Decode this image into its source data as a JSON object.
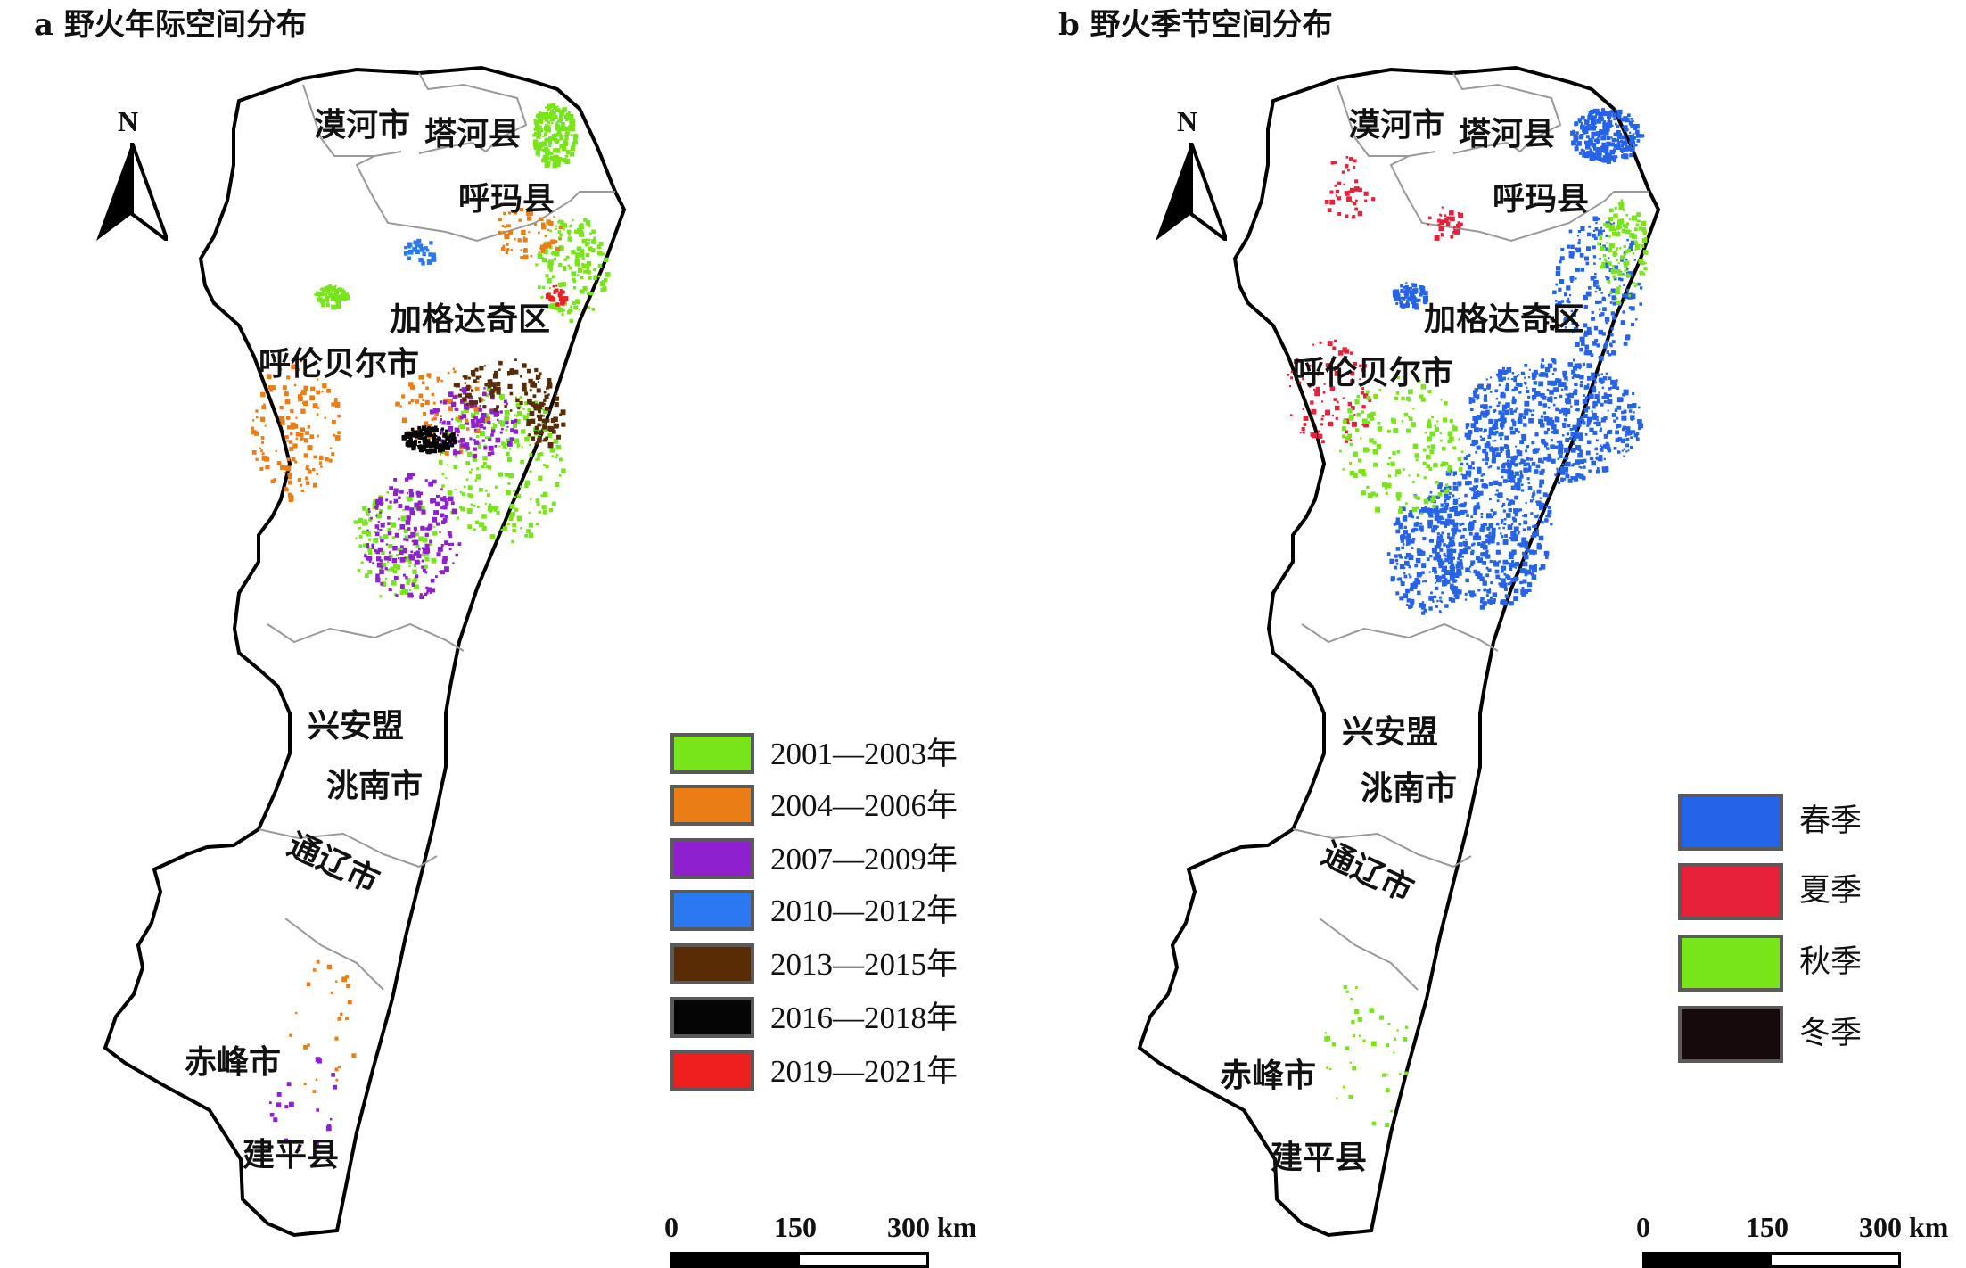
{
  "panels": [
    {
      "title": "a 野火年际空间分布",
      "places": {
        "mohe": "漠河市",
        "tahe": "塔河县",
        "huma": "呼玛县",
        "jiagedaqi": "加格达奇区",
        "hulunbuir": "呼伦贝尔市",
        "xinganmeng": "兴安盟",
        "taonan": "洮南市",
        "tongliao": "通辽市",
        "chifeng": "赤峰市",
        "jianping": "建平县"
      },
      "north": "N",
      "legend": [
        {
          "label": "2001—2003年",
          "color": "#77e51a"
        },
        {
          "label": "2004—2006年",
          "color": "#ea7d16"
        },
        {
          "label": "2007—2009年",
          "color": "#8e20d0"
        },
        {
          "label": "2010—2012年",
          "color": "#2c78f2"
        },
        {
          "label": "2013—2015年",
          "color": "#5a2c06"
        },
        {
          "label": "2016—2018年",
          "color": "#050505"
        },
        {
          "label": "2019—2021年",
          "color": "#f01f1f"
        }
      ],
      "scale": {
        "zero": "0",
        "mid": "150",
        "end": "300 km"
      }
    },
    {
      "title": "b 野火季节空间分布",
      "places": {
        "mohe": "漠河市",
        "tahe": "塔河县",
        "huma": "呼玛县",
        "jiagedaqi": "加格达奇区",
        "hulunbuir": "呼伦贝尔市",
        "xinganmeng": "兴安盟",
        "taonan": "洮南市",
        "tongliao": "通辽市",
        "chifeng": "赤峰市",
        "jianping": "建平县"
      },
      "north": "N",
      "legend": [
        {
          "label": "春季",
          "color": "#2563e8"
        },
        {
          "label": "夏季",
          "color": "#e8213a"
        },
        {
          "label": "秋季",
          "color": "#77e51a"
        },
        {
          "label": "冬季",
          "color": "#160a0c"
        }
      ],
      "scale": {
        "zero": "0",
        "mid": "150",
        "end": "300 km"
      }
    }
  ]
}
